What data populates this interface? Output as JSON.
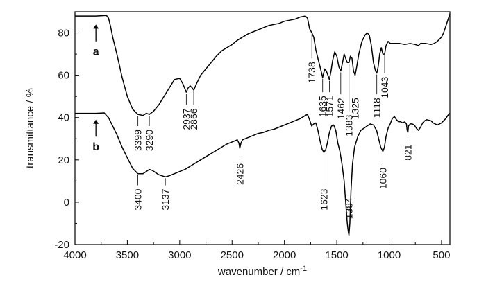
{
  "chart_data": {
    "type": "line",
    "xlabel": "wavenumber / cm",
    "xlabel_superscript": "-1",
    "ylabel": "transmittance / %",
    "xlim": [
      4000,
      420
    ],
    "ylim": [
      -20,
      90
    ],
    "x_ticks": [
      4000,
      3500,
      3000,
      2500,
      2000,
      1500,
      1000,
      500
    ],
    "y_ticks": [
      -20,
      0,
      20,
      40,
      60,
      80
    ],
    "grid": false,
    "series": [
      {
        "name": "a",
        "color": "#000000",
        "points": [
          [
            4000,
            88
          ],
          [
            3800,
            88
          ],
          [
            3700,
            88.3
          ],
          [
            3680,
            87
          ],
          [
            3660,
            83
          ],
          [
            3640,
            78
          ],
          [
            3600,
            70
          ],
          [
            3550,
            59
          ],
          [
            3500,
            50
          ],
          [
            3450,
            44
          ],
          [
            3400,
            41.5
          ],
          [
            3350,
            41
          ],
          [
            3320,
            42
          ],
          [
            3290,
            41.5
          ],
          [
            3250,
            43
          ],
          [
            3200,
            46
          ],
          [
            3150,
            50
          ],
          [
            3100,
            54
          ],
          [
            3050,
            58
          ],
          [
            3000,
            58.5
          ],
          [
            2970,
            56
          ],
          [
            2937,
            52
          ],
          [
            2920,
            54
          ],
          [
            2900,
            55
          ],
          [
            2880,
            54
          ],
          [
            2866,
            53
          ],
          [
            2840,
            56
          ],
          [
            2800,
            60
          ],
          [
            2750,
            63
          ],
          [
            2700,
            66
          ],
          [
            2650,
            69
          ],
          [
            2600,
            71.5
          ],
          [
            2550,
            73
          ],
          [
            2500,
            74.5
          ],
          [
            2450,
            76.5
          ],
          [
            2400,
            78
          ],
          [
            2350,
            79.5
          ],
          [
            2300,
            80.5
          ],
          [
            2250,
            81.5
          ],
          [
            2200,
            82.5
          ],
          [
            2150,
            83.5
          ],
          [
            2100,
            84
          ],
          [
            2050,
            84.5
          ],
          [
            2000,
            85.5
          ],
          [
            1950,
            86
          ],
          [
            1900,
            86.5
          ],
          [
            1850,
            87.5
          ],
          [
            1800,
            88
          ],
          [
            1780,
            87
          ],
          [
            1760,
            82
          ],
          [
            1738,
            80
          ],
          [
            1720,
            78
          ],
          [
            1700,
            72
          ],
          [
            1680,
            68
          ],
          [
            1660,
            64
          ],
          [
            1635,
            59
          ],
          [
            1615,
            63
          ],
          [
            1600,
            62
          ],
          [
            1585,
            60
          ],
          [
            1571,
            58
          ],
          [
            1555,
            62
          ],
          [
            1540,
            67
          ],
          [
            1520,
            71
          ],
          [
            1500,
            69
          ],
          [
            1480,
            64
          ],
          [
            1462,
            62
          ],
          [
            1445,
            66
          ],
          [
            1430,
            70
          ],
          [
            1415,
            68
          ],
          [
            1400,
            66
          ],
          [
            1383,
            66
          ],
          [
            1370,
            69
          ],
          [
            1355,
            68
          ],
          [
            1340,
            62
          ],
          [
            1325,
            60
          ],
          [
            1310,
            64
          ],
          [
            1290,
            70
          ],
          [
            1260,
            76
          ],
          [
            1230,
            79
          ],
          [
            1210,
            80
          ],
          [
            1190,
            79
          ],
          [
            1170,
            74
          ],
          [
            1150,
            66
          ],
          [
            1130,
            62
          ],
          [
            1118,
            61
          ],
          [
            1105,
            64
          ],
          [
            1090,
            70
          ],
          [
            1075,
            73
          ],
          [
            1060,
            70
          ],
          [
            1043,
            70
          ],
          [
            1030,
            74
          ],
          [
            1010,
            76
          ],
          [
            990,
            75
          ],
          [
            950,
            75
          ],
          [
            900,
            75
          ],
          [
            850,
            74.5
          ],
          [
            800,
            75
          ],
          [
            750,
            74.5
          ],
          [
            720,
            74
          ],
          [
            700,
            75
          ],
          [
            650,
            75
          ],
          [
            600,
            74.5
          ],
          [
            570,
            75
          ],
          [
            540,
            76
          ],
          [
            500,
            78
          ],
          [
            480,
            80
          ],
          [
            460,
            83
          ],
          [
            440,
            86
          ],
          [
            420,
            89
          ]
        ]
      },
      {
        "name": "b",
        "color": "#000000",
        "points": [
          [
            4000,
            42
          ],
          [
            3800,
            42
          ],
          [
            3720,
            42.2
          ],
          [
            3700,
            41
          ],
          [
            3680,
            40
          ],
          [
            3650,
            37
          ],
          [
            3600,
            32
          ],
          [
            3550,
            26
          ],
          [
            3500,
            21
          ],
          [
            3450,
            16
          ],
          [
            3400,
            13.5
          ],
          [
            3350,
            13.5
          ],
          [
            3320,
            14.5
          ],
          [
            3290,
            15.5
          ],
          [
            3260,
            15
          ],
          [
            3230,
            14
          ],
          [
            3200,
            13
          ],
          [
            3170,
            12.5
          ],
          [
            3137,
            12
          ],
          [
            3100,
            12.5
          ],
          [
            3050,
            13.5
          ],
          [
            3000,
            14.5
          ],
          [
            2950,
            15.5
          ],
          [
            2900,
            17
          ],
          [
            2850,
            18.5
          ],
          [
            2800,
            20
          ],
          [
            2750,
            21.5
          ],
          [
            2700,
            23
          ],
          [
            2650,
            24.5
          ],
          [
            2600,
            26
          ],
          [
            2550,
            27.5
          ],
          [
            2500,
            28.5
          ],
          [
            2450,
            29.5
          ],
          [
            2435,
            28
          ],
          [
            2426,
            25.5
          ],
          [
            2415,
            28
          ],
          [
            2400,
            29.5
          ],
          [
            2350,
            30.5
          ],
          [
            2300,
            31.5
          ],
          [
            2250,
            32.5
          ],
          [
            2200,
            33
          ],
          [
            2150,
            34
          ],
          [
            2100,
            34.5
          ],
          [
            2050,
            35.5
          ],
          [
            2000,
            36.5
          ],
          [
            1950,
            37.5
          ],
          [
            1900,
            38.5
          ],
          [
            1850,
            39.5
          ],
          [
            1800,
            41
          ],
          [
            1780,
            41.5
          ],
          [
            1760,
            39
          ],
          [
            1740,
            36
          ],
          [
            1720,
            37
          ],
          [
            1700,
            37.5
          ],
          [
            1680,
            34
          ],
          [
            1660,
            29
          ],
          [
            1640,
            25
          ],
          [
            1623,
            23.5
          ],
          [
            1605,
            25
          ],
          [
            1590,
            28
          ],
          [
            1570,
            33
          ],
          [
            1550,
            36
          ],
          [
            1530,
            36.5
          ],
          [
            1510,
            34
          ],
          [
            1490,
            28
          ],
          [
            1470,
            24
          ],
          [
            1450,
            18
          ],
          [
            1430,
            10
          ],
          [
            1415,
            0
          ],
          [
            1400,
            -10
          ],
          [
            1390,
            -14
          ],
          [
            1384,
            -15.5
          ],
          [
            1375,
            -10
          ],
          [
            1365,
            5
          ],
          [
            1350,
            18
          ],
          [
            1330,
            26
          ],
          [
            1300,
            31
          ],
          [
            1270,
            34
          ],
          [
            1240,
            35
          ],
          [
            1210,
            36
          ],
          [
            1180,
            37
          ],
          [
            1150,
            36.5
          ],
          [
            1120,
            34
          ],
          [
            1100,
            30
          ],
          [
            1080,
            26
          ],
          [
            1060,
            24
          ],
          [
            1045,
            26
          ],
          [
            1030,
            31
          ],
          [
            1010,
            35
          ],
          [
            990,
            37
          ],
          [
            970,
            39.5
          ],
          [
            950,
            40.5
          ],
          [
            930,
            39
          ],
          [
            910,
            38
          ],
          [
            890,
            38
          ],
          [
            870,
            37.5
          ],
          [
            850,
            38
          ],
          [
            835,
            37
          ],
          [
            828,
            34
          ],
          [
            821,
            33
          ],
          [
            815,
            36
          ],
          [
            800,
            37
          ],
          [
            780,
            37
          ],
          [
            760,
            36.5
          ],
          [
            740,
            35
          ],
          [
            720,
            34
          ],
          [
            700,
            35.5
          ],
          [
            680,
            37.5
          ],
          [
            660,
            38.5
          ],
          [
            640,
            39
          ],
          [
            600,
            38.5
          ],
          [
            580,
            37.5
          ],
          [
            560,
            37
          ],
          [
            540,
            36.5
          ],
          [
            520,
            37
          ],
          [
            500,
            37.5
          ],
          [
            480,
            38.5
          ],
          [
            460,
            39.5
          ],
          [
            440,
            41
          ],
          [
            420,
            42
          ]
        ]
      }
    ],
    "peak_labels": [
      {
        "text": "3399",
        "x": 3399,
        "y": 41.5,
        "label_y": 35,
        "series": "a"
      },
      {
        "text": "3290",
        "x": 3290,
        "y": 41.5,
        "label_y": 35,
        "series": "a"
      },
      {
        "text": "2937",
        "x": 2937,
        "y": 52,
        "label_y": 45,
        "series": "a"
      },
      {
        "text": "2866",
        "x": 2866,
        "y": 53,
        "label_y": 45,
        "series": "a"
      },
      {
        "text": "1738",
        "x": 1738,
        "y": 80,
        "label_y": 67,
        "series": "a"
      },
      {
        "text": "1635",
        "x": 1635,
        "y": 59,
        "label_y": 51,
        "series": "a"
      },
      {
        "text": "1571",
        "x": 1571,
        "y": 58,
        "label_y": 51,
        "series": "a"
      },
      {
        "text": "1462",
        "x": 1462,
        "y": 62,
        "label_y": 50,
        "series": "a"
      },
      {
        "text": "1383",
        "x": 1383,
        "y": 66,
        "label_y": 42,
        "series": "a"
      },
      {
        "text": "1325",
        "x": 1325,
        "y": 60,
        "label_y": 50,
        "series": "a"
      },
      {
        "text": "1118",
        "x": 1118,
        "y": 61,
        "label_y": 50,
        "series": "a"
      },
      {
        "text": "1043",
        "x": 1043,
        "y": 70,
        "label_y": 60,
        "series": "a"
      },
      {
        "text": "3400",
        "x": 3400,
        "y": 13.5,
        "label_y": 7,
        "series": "b"
      },
      {
        "text": "3137",
        "x": 3137,
        "y": 12,
        "label_y": 7,
        "series": "b"
      },
      {
        "text": "2426",
        "x": 2426,
        "y": 25.5,
        "label_y": 19,
        "series": "b"
      },
      {
        "text": "1623",
        "x": 1623,
        "y": 23.5,
        "label_y": 7,
        "series": "b"
      },
      {
        "text": "1384",
        "x": 1384,
        "y": -15.5,
        "label_y": -8,
        "series": "b"
      },
      {
        "text": "1060",
        "x": 1060,
        "y": 24,
        "label_y": 17,
        "series": "b"
      },
      {
        "text": "821",
        "x": 821,
        "y": 33,
        "label_y": 28,
        "series": "b"
      }
    ],
    "series_labels": [
      {
        "text": "a",
        "x": 3800,
        "y": 73.5,
        "arrow_from": 76,
        "arrow_to": 84
      },
      {
        "text": "b",
        "x": 3800,
        "y": 28.5,
        "arrow_from": 31,
        "arrow_to": 39
      }
    ]
  }
}
